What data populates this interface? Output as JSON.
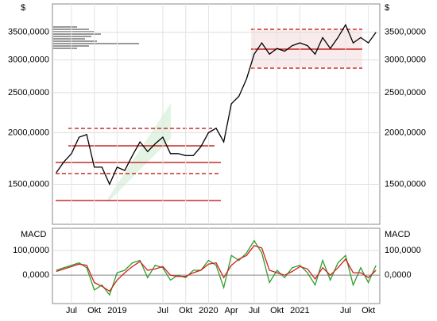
{
  "chart_data": [
    {
      "type": "line",
      "currency_label": "$",
      "log_scale": true,
      "grid": true,
      "categories": [
        null,
        null,
        "Jul",
        null,
        null,
        "Okt",
        null,
        null,
        "2019",
        null,
        null,
        null,
        null,
        null,
        "Jul",
        null,
        null,
        "Okt",
        null,
        null,
        "2020",
        null,
        null,
        "Apr",
        null,
        null,
        "Jul",
        null,
        null,
        "Okt",
        null,
        null,
        "2021",
        null,
        null,
        null,
        null,
        null,
        "Jul",
        null,
        null,
        "Okt",
        null
      ],
      "series": [
        {
          "color": "#000000",
          "values": [
            1600,
            1700,
            1780,
            1950,
            1980,
            1650,
            1650,
            1500,
            1650,
            1620,
            1760,
            1900,
            1800,
            1880,
            1950,
            1780,
            1780,
            1760,
            1760,
            1850,
            2000,
            2050,
            1900,
            2350,
            2450,
            2700,
            3100,
            3300,
            3100,
            3200,
            3150,
            3250,
            3300,
            3250,
            3100,
            3400,
            3200,
            3400,
            3650,
            3300,
            3400,
            3300,
            3500
          ]
        }
      ],
      "ylim": [
        1200,
        4100
      ],
      "yticks": [
        {
          "value": 1500,
          "label": "1500,0000"
        },
        {
          "value": 2000,
          "label": "2000,0000"
        },
        {
          "value": 2500,
          "label": "2500,0000"
        },
        {
          "value": 3000,
          "label": "3000,0000"
        },
        {
          "value": 3500,
          "label": "3500,0000"
        }
      ]
    },
    {
      "type": "line",
      "title": "MACD",
      "log_scale": false,
      "grid": true,
      "categories": [
        null,
        null,
        "Jul",
        null,
        null,
        "Okt",
        null,
        null,
        "2019",
        null,
        null,
        null,
        null,
        null,
        "Jul",
        null,
        null,
        "Okt",
        null,
        null,
        "2020",
        null,
        null,
        "Apr",
        null,
        null,
        "Jul",
        null,
        null,
        "Okt",
        null,
        null,
        "2021",
        null,
        null,
        null,
        null,
        null,
        "Jul",
        null,
        null,
        "Okt",
        null
      ],
      "series": [
        {
          "color": "#2e9e2e",
          "values": [
            20,
            30,
            40,
            50,
            30,
            -60,
            -40,
            -80,
            10,
            20,
            50,
            60,
            -10,
            40,
            30,
            -20,
            0,
            -10,
            20,
            20,
            60,
            40,
            -50,
            80,
            60,
            90,
            140,
            90,
            -30,
            20,
            -10,
            30,
            40,
            10,
            -40,
            60,
            -20,
            50,
            80,
            -40,
            30,
            -30,
            40
          ]
        },
        {
          "color": "#d42020",
          "values": [
            15,
            25,
            35,
            45,
            40,
            -30,
            -45,
            -65,
            -20,
            10,
            35,
            55,
            20,
            25,
            35,
            0,
            -5,
            -5,
            10,
            20,
            45,
            50,
            -10,
            40,
            65,
            80,
            120,
            110,
            20,
            10,
            0,
            15,
            35,
            25,
            -15,
            30,
            0,
            30,
            65,
            10,
            10,
            -10,
            20
          ]
        }
      ],
      "ylim": [
        -115,
        190
      ],
      "yticks": [
        {
          "value": 0,
          "label": "0,0000"
        },
        {
          "value": 100,
          "label": "100,0000"
        }
      ]
    }
  ]
}
